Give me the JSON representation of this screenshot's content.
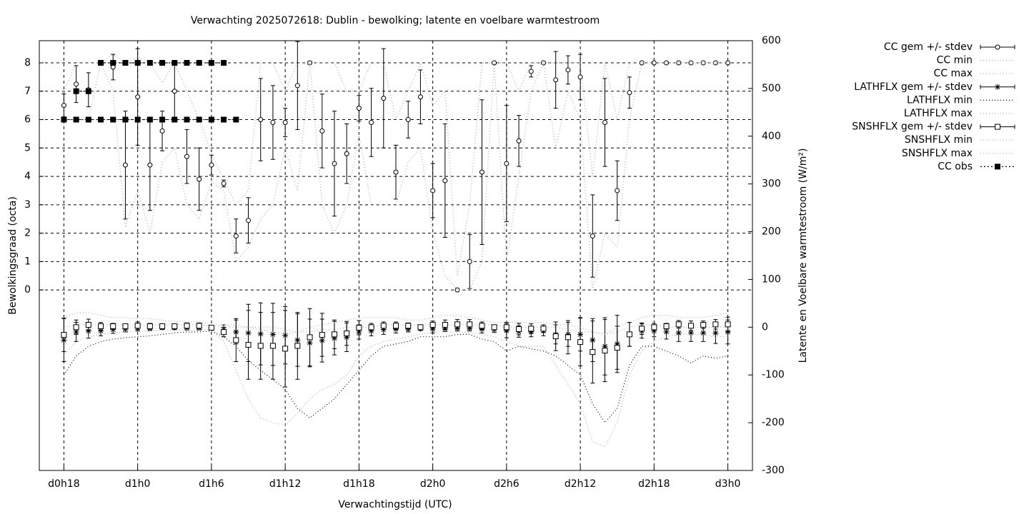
{
  "chart_data": {
    "type": "errorbar",
    "title": "Verwachting 2025072618: Dublin - bewolking; latente en voelbare warmtestroom",
    "xlabel": "Verwachtingstijd (UTC)",
    "ylabel": "Bewolkingsgraad (octa)",
    "y2label": "Latente en Voelbare warmtestroom (W/m²)",
    "grid": true,
    "legend": "right",
    "xlim": [
      16,
      74
    ],
    "ylim": [
      -6.36,
      8.78
    ],
    "y2lim": [
      -300,
      600
    ],
    "xticks": [
      {
        "value": 18,
        "label": "d0h18"
      },
      {
        "value": 24,
        "label": "d1h0"
      },
      {
        "value": 30,
        "label": "d1h6"
      },
      {
        "value": 36,
        "label": "d1h12"
      },
      {
        "value": 42,
        "label": "d1h18"
      },
      {
        "value": 48,
        "label": "d2h0"
      },
      {
        "value": 54,
        "label": "d2h6"
      },
      {
        "value": 60,
        "label": "d2h12"
      },
      {
        "value": 66,
        "label": "d2h18"
      },
      {
        "value": 72,
        "label": "d3h0"
      }
    ],
    "yticks": [
      0,
      1,
      2,
      3,
      4,
      5,
      6,
      7,
      8
    ],
    "y2ticks": [
      -300,
      -200,
      -100,
      0,
      100,
      200,
      300,
      400,
      500,
      600
    ],
    "x": [
      18,
      19,
      20,
      21,
      22,
      23,
      24,
      25,
      26,
      27,
      28,
      29,
      30,
      31,
      32,
      33,
      34,
      35,
      36,
      37,
      38,
      39,
      40,
      41,
      42,
      43,
      44,
      45,
      46,
      47,
      48,
      49,
      50,
      51,
      52,
      53,
      54,
      55,
      56,
      57,
      58,
      59,
      60,
      61,
      62,
      63,
      64,
      65,
      66,
      67,
      68,
      69,
      70,
      71,
      72
    ],
    "series": [
      {
        "name": "CC gem +/- stdev",
        "color": "#000000",
        "style": "errorbar",
        "marker": "circle",
        "axis": "y",
        "values": [
          6.5,
          7.25,
          7.05,
          8,
          7.85,
          4.4,
          6.8,
          4.4,
          5.6,
          7.0,
          4.7,
          3.9,
          4.4,
          3.75,
          1.9,
          2.45,
          6.0,
          5.9,
          5.9,
          7.2,
          8.0,
          5.6,
          4.45,
          4.8,
          6.4,
          5.9,
          6.75,
          4.15,
          6.0,
          6.8,
          3.5,
          3.85,
          0,
          1.0,
          4.15,
          8,
          4.45,
          5.25,
          7.7,
          8,
          7.4,
          7.75,
          7.5,
          1.9,
          5.9,
          3.5,
          6.95,
          8,
          8,
          8,
          8,
          8,
          8,
          8,
          8
        ],
        "errors": [
          0.4,
          0.65,
          0.6,
          0,
          0.45,
          1.9,
          1.7,
          1.6,
          0.7,
          1.0,
          0.95,
          1.1,
          0.35,
          0.12,
          0.6,
          0.8,
          1.45,
          1.3,
          0.5,
          1.55,
          0.05,
          1.3,
          1.85,
          1.05,
          0.45,
          1.2,
          1.75,
          0.95,
          0.65,
          0.95,
          0.95,
          2.0,
          0,
          0.95,
          2.55,
          0,
          2.05,
          0.9,
          0.2,
          0,
          1.0,
          0.5,
          0.8,
          1.45,
          1.55,
          1.05,
          0.55,
          0,
          0,
          0,
          0,
          0,
          0,
          0,
          0
        ]
      },
      {
        "name": "CC min",
        "color": "#aaaaaa",
        "style": "dotted",
        "axis": "y",
        "values": [
          6,
          6,
          6,
          8,
          7,
          2.2,
          3.5,
          2.0,
          4.5,
          5,
          3,
          2.5,
          3.8,
          3.5,
          1.0,
          1.5,
          2.5,
          3,
          5,
          3.5,
          8,
          3,
          2,
          3,
          5.5,
          3,
          3,
          3,
          4.5,
          5,
          2,
          0.5,
          0,
          0,
          1,
          8,
          1,
          4,
          7,
          8,
          5,
          7,
          6,
          0,
          2,
          1.5,
          6,
          8,
          8,
          8,
          8,
          8,
          8,
          8,
          8
        ]
      },
      {
        "name": "CC max",
        "color": "#aaaaaa",
        "style": "dotted",
        "axis": "y",
        "values": [
          7,
          8,
          8,
          8,
          8.3,
          8,
          8.2,
          8,
          7.3,
          8,
          7,
          6,
          4.8,
          3.9,
          3,
          3.5,
          8,
          8,
          7,
          8,
          8,
          8,
          8,
          7,
          7,
          8,
          8,
          6,
          7,
          8,
          6.5,
          7,
          0.5,
          3,
          8,
          8,
          8,
          7,
          8,
          8,
          8,
          8,
          8,
          4,
          8,
          6,
          8,
          8,
          8,
          8,
          8,
          8,
          8,
          8,
          8
        ]
      },
      {
        "name": "LATHFLX gem +/- stdev",
        "color": "#000000",
        "style": "errorbar",
        "marker": "star",
        "axis": "y2",
        "values": [
          -27,
          -10,
          -8,
          -8,
          -5,
          -4,
          -2,
          -2,
          -1,
          -1,
          -1,
          -1,
          -1,
          -5,
          -10,
          -12,
          -14,
          -15,
          -17,
          -27,
          -33,
          -28,
          -23,
          -21,
          -10,
          -8,
          -5,
          -4,
          -4,
          -3,
          -4,
          -3,
          -2,
          -2,
          -4,
          -5,
          -7,
          -9,
          -10,
          -8,
          -15,
          -15,
          -15,
          -27,
          -40,
          -35,
          -15,
          -8,
          -8,
          -10,
          -12,
          -12,
          -12,
          -12,
          -10
        ],
        "errors": [
          45,
          20,
          15,
          10,
          8,
          6,
          6,
          5,
          4,
          4,
          5,
          5,
          3,
          10,
          25,
          60,
          65,
          65,
          60,
          55,
          50,
          45,
          35,
          30,
          15,
          10,
          10,
          8,
          6,
          4,
          8,
          6,
          6,
          6,
          8,
          6,
          15,
          12,
          10,
          10,
          20,
          25,
          35,
          45,
          60,
          60,
          25,
          15,
          12,
          15,
          18,
          18,
          18,
          22,
          25
        ]
      },
      {
        "name": "LATHFLX min",
        "color": "#000000",
        "style": "dotted",
        "axis": "y2",
        "values": [
          -100,
          -60,
          -40,
          -30,
          -25,
          -22,
          -20,
          -18,
          -15,
          -12,
          -10,
          -10,
          -8,
          -20,
          -40,
          -70,
          -90,
          -110,
          -130,
          -170,
          -190,
          -170,
          -150,
          -120,
          -90,
          -60,
          -40,
          -35,
          -30,
          -20,
          -20,
          -20,
          -15,
          -15,
          -25,
          -30,
          -50,
          -40,
          -45,
          -50,
          -60,
          -80,
          -100,
          -160,
          -200,
          -170,
          -80,
          -40,
          -40,
          -50,
          -60,
          -75,
          -60,
          -65,
          -60
        ]
      },
      {
        "name": "LATHFLX max",
        "color": "#aaaaaa",
        "style": "dotted",
        "axis": "y2",
        "values": [
          0,
          5,
          5,
          5,
          5,
          5,
          5,
          5,
          5,
          5,
          5,
          5,
          3,
          2,
          0,
          0,
          0,
          0,
          -5,
          -10,
          -10,
          -5,
          -5,
          0,
          0,
          0,
          5,
          5,
          5,
          5,
          5,
          5,
          5,
          5,
          5,
          5,
          0,
          0,
          0,
          0,
          0,
          -5,
          -10,
          -10,
          -15,
          -10,
          0,
          5,
          5,
          0,
          0,
          0,
          0,
          0,
          0
        ]
      },
      {
        "name": "SNSHFLX gem +/- stdev",
        "color": "#000000",
        "style": "errorbar",
        "marker": "square",
        "axis": "y2",
        "values": [
          -16,
          0,
          5,
          2,
          2,
          2,
          3,
          2,
          2,
          2,
          3,
          3,
          -1,
          -10,
          -27,
          -37,
          -39,
          -39,
          -45,
          -39,
          -21,
          -16,
          -15,
          -13,
          -1,
          0,
          3,
          3,
          3,
          0,
          5,
          5,
          6,
          6,
          3,
          0,
          0,
          -4,
          -3,
          -3,
          -19,
          -21,
          -31,
          -52,
          -49,
          -43,
          -15,
          -3,
          0,
          2,
          6,
          3,
          5,
          6,
          6
        ],
        "errors": [
          35,
          15,
          12,
          8,
          6,
          5,
          8,
          6,
          4,
          4,
          6,
          6,
          2,
          10,
          45,
          72,
          70,
          70,
          80,
          70,
          60,
          45,
          30,
          25,
          15,
          8,
          8,
          8,
          6,
          3,
          8,
          10,
          10,
          10,
          8,
          5,
          10,
          12,
          10,
          8,
          30,
          35,
          50,
          65,
          65,
          45,
          25,
          12,
          8,
          6,
          8,
          10,
          8,
          10,
          15
        ]
      },
      {
        "name": "SNSHFLX min",
        "color": "#aaaaaa",
        "style": "dotted",
        "axis": "y2",
        "values": [
          -60,
          -30,
          -20,
          -15,
          -12,
          -10,
          -10,
          -8,
          -6,
          -6,
          -6,
          -6,
          -5,
          -30,
          -90,
          -150,
          -190,
          -200,
          -205,
          -180,
          -150,
          -130,
          -120,
          -100,
          -60,
          -40,
          -30,
          -25,
          -20,
          -15,
          -10,
          -10,
          -10,
          -10,
          -15,
          -20,
          -30,
          -40,
          -40,
          -40,
          -80,
          -120,
          -160,
          -240,
          -250,
          -200,
          -100,
          -50,
          -30,
          -20,
          -15,
          -15,
          -15,
          -20,
          -20
        ]
      },
      {
        "name": "SNSHFLX max",
        "color": "#aaaaaa",
        "style": "dotted",
        "axis": "y2",
        "values": [
          20,
          30,
          30,
          25,
          20,
          20,
          18,
          18,
          15,
          12,
          12,
          12,
          5,
          5,
          5,
          0,
          -5,
          -10,
          -15,
          -10,
          0,
          5,
          10,
          15,
          20,
          20,
          20,
          20,
          15,
          15,
          20,
          25,
          25,
          20,
          15,
          10,
          10,
          10,
          10,
          10,
          5,
          5,
          0,
          -10,
          -15,
          0,
          10,
          20,
          25,
          25,
          20,
          20,
          20,
          25,
          30
        ]
      },
      {
        "name": "CC obs",
        "color": "#000000",
        "style": "linespoints",
        "marker": "filled-square",
        "axis": "y",
        "x": [
          18,
          19,
          20,
          21,
          22,
          23,
          24,
          25,
          26,
          27,
          28,
          29,
          30,
          31,
          32,
          null,
          19,
          20,
          null,
          21,
          22,
          23,
          24,
          25,
          26,
          27,
          28,
          29,
          30,
          31
        ],
        "values": [
          6,
          6,
          6,
          6,
          6,
          6,
          6,
          6,
          6,
          6,
          6,
          6,
          6,
          6,
          6,
          null,
          7,
          7,
          null,
          8,
          8,
          8,
          8,
          8,
          8,
          8,
          8,
          8,
          8,
          8
        ]
      }
    ]
  }
}
